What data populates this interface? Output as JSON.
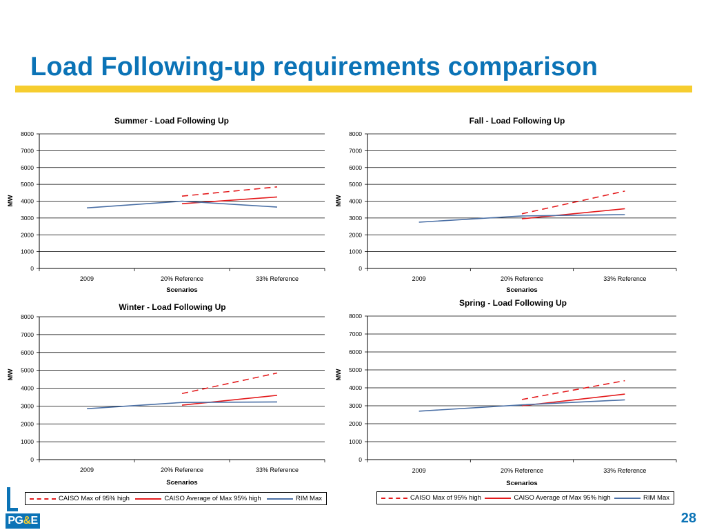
{
  "slide": {
    "title": "Load Following-up requirements comparison",
    "page_number": "28",
    "logo": {
      "p": "PG",
      "amp": "&",
      "e": "E"
    }
  },
  "colors": {
    "caiso": "#e31a1c",
    "rim": "#4a6fa5",
    "title": "#0b73b6",
    "rule": "#f6cd2f"
  },
  "legend": {
    "items": [
      {
        "label": "CAISO Max of 95% high",
        "style": "dashed",
        "color": "#e31a1c"
      },
      {
        "label": "CAISO Average of Max 95% high",
        "style": "solid",
        "color": "#e31a1c"
      },
      {
        "label": "RIM Max",
        "style": "solid",
        "color": "#4a6fa5"
      }
    ]
  },
  "chart_data": [
    {
      "type": "line",
      "title": "Summer - Load Following Up",
      "xlabel": "Scenarios",
      "ylabel": "MW",
      "categories": [
        "2009",
        "20% Reference",
        "33% Reference"
      ],
      "yticks": [
        0,
        1000,
        2000,
        3000,
        4000,
        5000,
        6000,
        7000,
        8000
      ],
      "ylim": [
        0,
        8000
      ],
      "grid": true,
      "series": [
        {
          "name": "CAISO Max of 95% high",
          "style": "dashed",
          "color": "#e31a1c",
          "values": [
            null,
            4300,
            4850
          ]
        },
        {
          "name": "CAISO Average of Max 95% high",
          "style": "solid",
          "color": "#e31a1c",
          "values": [
            null,
            3850,
            4250
          ]
        },
        {
          "name": "RIM Max",
          "style": "solid",
          "color": "#4a6fa5",
          "values": [
            3600,
            4000,
            3650
          ]
        }
      ]
    },
    {
      "type": "line",
      "title": "Fall - Load Following Up",
      "xlabel": "Scenarios",
      "ylabel": "MW",
      "categories": [
        "2009",
        "20% Reference",
        "33% Reference"
      ],
      "yticks": [
        0,
        1000,
        2000,
        3000,
        4000,
        5000,
        6000,
        7000,
        8000
      ],
      "ylim": [
        0,
        8000
      ],
      "grid": true,
      "series": [
        {
          "name": "CAISO Max of 95% high",
          "style": "dashed",
          "color": "#e31a1c",
          "values": [
            null,
            3250,
            4600
          ]
        },
        {
          "name": "CAISO Average of Max 95% high",
          "style": "solid",
          "color": "#e31a1c",
          "values": [
            null,
            2950,
            3550
          ]
        },
        {
          "name": "RIM Max",
          "style": "solid",
          "color": "#4a6fa5",
          "values": [
            2750,
            3120,
            3200
          ]
        }
      ]
    },
    {
      "type": "line",
      "title": "Winter - Load Following Up",
      "xlabel": "Scenarios",
      "ylabel": "MW",
      "categories": [
        "2009",
        "20% Reference",
        "33% Reference"
      ],
      "yticks": [
        0,
        1000,
        2000,
        3000,
        4000,
        5000,
        6000,
        7000,
        8000
      ],
      "ylim": [
        0,
        8000
      ],
      "grid": true,
      "series": [
        {
          "name": "CAISO Max of 95% high",
          "style": "dashed",
          "color": "#e31a1c",
          "values": [
            null,
            3700,
            4850
          ]
        },
        {
          "name": "CAISO Average of Max 95% high",
          "style": "solid",
          "color": "#e31a1c",
          "values": [
            null,
            3050,
            3600
          ]
        },
        {
          "name": "RIM Max",
          "style": "solid",
          "color": "#4a6fa5",
          "values": [
            2850,
            3200,
            3230
          ]
        }
      ]
    },
    {
      "type": "line",
      "title": "Spring - Load Following Up",
      "xlabel": "Scenarios",
      "ylabel": "MW",
      "categories": [
        "2009",
        "20% Reference",
        "33% Reference"
      ],
      "yticks": [
        0,
        1000,
        2000,
        3000,
        4000,
        5000,
        6000,
        7000,
        8000
      ],
      "ylim": [
        0,
        8000
      ],
      "grid": true,
      "series": [
        {
          "name": "CAISO Max of 95% high",
          "style": "dashed",
          "color": "#e31a1c",
          "values": [
            null,
            3350,
            4400
          ]
        },
        {
          "name": "CAISO Average of Max 95% high",
          "style": "solid",
          "color": "#e31a1c",
          "values": [
            null,
            3000,
            3650
          ]
        },
        {
          "name": "RIM Max",
          "style": "solid",
          "color": "#4a6fa5",
          "values": [
            2700,
            3050,
            3330
          ]
        }
      ]
    }
  ]
}
